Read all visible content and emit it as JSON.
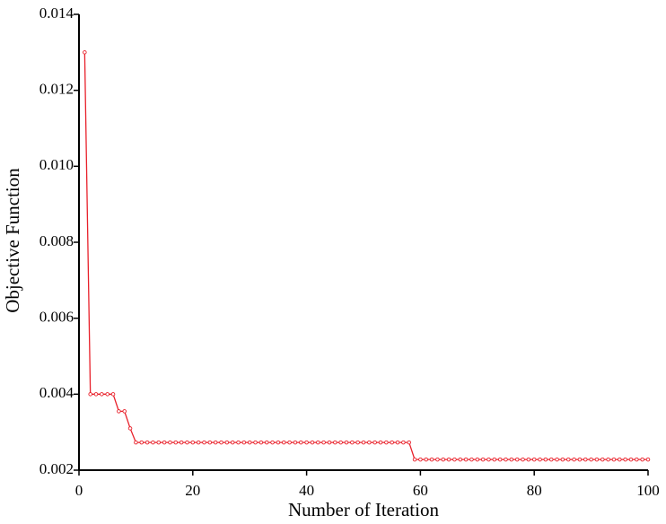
{
  "chart_data": {
    "type": "line",
    "x_label": "Number of Iteration",
    "y_label": "Objective Function",
    "color": "#e8202a",
    "x": [
      1,
      2,
      3,
      4,
      5,
      6,
      7,
      8,
      9,
      10,
      11,
      12,
      13,
      14,
      15,
      16,
      17,
      18,
      19,
      20,
      21,
      22,
      23,
      24,
      25,
      26,
      27,
      28,
      29,
      30,
      31,
      32,
      33,
      34,
      35,
      36,
      37,
      38,
      39,
      40,
      41,
      42,
      43,
      44,
      45,
      46,
      47,
      48,
      49,
      50,
      51,
      52,
      53,
      54,
      55,
      56,
      57,
      58,
      59,
      60,
      61,
      62,
      63,
      64,
      65,
      66,
      67,
      68,
      69,
      70,
      71,
      72,
      73,
      74,
      75,
      76,
      77,
      78,
      79,
      80,
      81,
      82,
      83,
      84,
      85,
      86,
      87,
      88,
      89,
      90,
      91,
      92,
      93,
      94,
      95,
      96,
      97,
      98,
      99,
      100
    ],
    "values": [
      0.013,
      0.004,
      0.004,
      0.004,
      0.004,
      0.004,
      0.00355,
      0.00355,
      0.0031,
      0.00273,
      0.00273,
      0.00273,
      0.00273,
      0.00273,
      0.00273,
      0.00273,
      0.00273,
      0.00273,
      0.00273,
      0.00273,
      0.00273,
      0.00273,
      0.00273,
      0.00273,
      0.00273,
      0.00273,
      0.00273,
      0.00273,
      0.00273,
      0.00273,
      0.00273,
      0.00273,
      0.00273,
      0.00273,
      0.00273,
      0.00273,
      0.00273,
      0.00273,
      0.00273,
      0.00273,
      0.00273,
      0.00273,
      0.00273,
      0.00273,
      0.00273,
      0.00273,
      0.00273,
      0.00273,
      0.00273,
      0.00273,
      0.00273,
      0.00273,
      0.00273,
      0.00273,
      0.00273,
      0.00273,
      0.00273,
      0.00273,
      0.00228,
      0.00228,
      0.00228,
      0.00228,
      0.00228,
      0.00228,
      0.00228,
      0.00228,
      0.00228,
      0.00228,
      0.00228,
      0.00228,
      0.00228,
      0.00228,
      0.00228,
      0.00228,
      0.00228,
      0.00228,
      0.00228,
      0.00228,
      0.00228,
      0.00228,
      0.00228,
      0.00228,
      0.00228,
      0.00228,
      0.00228,
      0.00228,
      0.00228,
      0.00228,
      0.00228,
      0.00228,
      0.00228,
      0.00228,
      0.00228,
      0.00228,
      0.00228,
      0.00228,
      0.00228,
      0.00228,
      0.00228,
      0.00228
    ],
    "xlim": [
      0,
      100
    ],
    "xticks": [
      0,
      20,
      40,
      60,
      80,
      100
    ],
    "ylim": [
      0.002,
      0.014
    ],
    "yticks": [
      0.002,
      0.004,
      0.006,
      0.008,
      {
        "value": 0.01,
        "label": "0.010"
      },
      {
        "value": 0.012,
        "label": "0.012"
      },
      {
        "value": 0.014,
        "label": "0.014"
      }
    ]
  }
}
